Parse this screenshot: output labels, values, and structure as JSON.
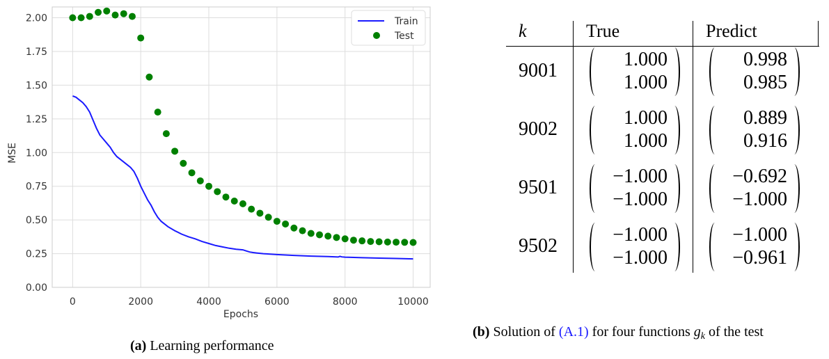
{
  "chart_data": {
    "type": "line",
    "xlabel": "Epochs",
    "ylabel": "MSE",
    "xlim": [
      -600,
      10500
    ],
    "ylim": [
      0.0,
      2.08
    ],
    "x_ticks": [
      "0",
      "2000",
      "4000",
      "6000",
      "8000",
      "10000"
    ],
    "y_ticks": [
      "0.00",
      "0.25",
      "0.50",
      "0.75",
      "1.00",
      "1.25",
      "1.50",
      "1.75",
      "2.00"
    ],
    "grid": true,
    "legend_position": "top-right",
    "series": [
      {
        "name": "Train",
        "style": "line",
        "color": "#1a1aff",
        "x": [
          0,
          100,
          200,
          300,
          400,
          500,
          600,
          700,
          800,
          900,
          1000,
          1100,
          1200,
          1300,
          1400,
          1500,
          1600,
          1700,
          1800,
          1900,
          2000,
          2100,
          2200,
          2300,
          2400,
          2500,
          2600,
          2700,
          2800,
          3000,
          3200,
          3400,
          3600,
          3800,
          4000,
          4200,
          4400,
          4600,
          4800,
          5000,
          5100,
          5200,
          5300,
          5400,
          5600,
          5800,
          6000,
          6500,
          7000,
          7500,
          7800,
          7850,
          7900,
          8000,
          8500,
          9000,
          9500,
          10000
        ],
        "y": [
          1.42,
          1.41,
          1.39,
          1.37,
          1.34,
          1.3,
          1.24,
          1.18,
          1.13,
          1.1,
          1.07,
          1.04,
          1.0,
          0.97,
          0.95,
          0.93,
          0.91,
          0.89,
          0.86,
          0.81,
          0.75,
          0.7,
          0.65,
          0.61,
          0.56,
          0.52,
          0.49,
          0.47,
          0.45,
          0.42,
          0.395,
          0.375,
          0.36,
          0.34,
          0.325,
          0.31,
          0.3,
          0.29,
          0.283,
          0.278,
          0.27,
          0.262,
          0.258,
          0.255,
          0.25,
          0.246,
          0.243,
          0.237,
          0.232,
          0.228,
          0.225,
          0.23,
          0.226,
          0.224,
          0.22,
          0.217,
          0.214,
          0.211
        ]
      },
      {
        "name": "Test",
        "style": "scatter",
        "color": "#008000",
        "x": [
          0,
          250,
          500,
          750,
          1000,
          1250,
          1500,
          1750,
          2000,
          2250,
          2500,
          2750,
          3000,
          3250,
          3500,
          3750,
          4000,
          4250,
          4500,
          4750,
          5000,
          5250,
          5500,
          5750,
          6000,
          6250,
          6500,
          6750,
          7000,
          7250,
          7500,
          7750,
          8000,
          8250,
          8500,
          8750,
          9000,
          9250,
          9500,
          9750,
          10000
        ],
        "y": [
          2.0,
          2.0,
          2.01,
          2.04,
          2.05,
          2.02,
          2.03,
          2.01,
          1.85,
          1.56,
          1.3,
          1.14,
          1.01,
          0.92,
          0.85,
          0.79,
          0.75,
          0.71,
          0.67,
          0.64,
          0.62,
          0.58,
          0.55,
          0.52,
          0.49,
          0.47,
          0.44,
          0.42,
          0.4,
          0.39,
          0.38,
          0.37,
          0.36,
          0.35,
          0.345,
          0.34,
          0.338,
          0.336,
          0.335,
          0.334,
          0.333
        ]
      }
    ]
  },
  "captions": {
    "a_label": "(a)",
    "a_text": "Learning performance",
    "b_label": "(b)",
    "b_text_pre": "Solution of",
    "b_ref": "(A.1)",
    "b_text_post": "for four functions",
    "b_var": "g",
    "b_sub": "k",
    "b_text_end": "of the test"
  },
  "table": {
    "headers": [
      "k",
      "True",
      "Predict"
    ],
    "rows": [
      {
        "k": "9001",
        "true": [
          "1.000",
          "1.000"
        ],
        "predict": [
          "0.998",
          "0.985"
        ]
      },
      {
        "k": "9002",
        "true": [
          "1.000",
          "1.000"
        ],
        "predict": [
          "0.889",
          "0.916"
        ]
      },
      {
        "k": "9501",
        "true": [
          "−1.000",
          "−1.000"
        ],
        "predict": [
          "−0.692",
          "−1.000"
        ]
      },
      {
        "k": "9502",
        "true": [
          "−1.000",
          "−1.000"
        ],
        "predict": [
          "−1.000",
          "−0.961"
        ]
      }
    ]
  }
}
